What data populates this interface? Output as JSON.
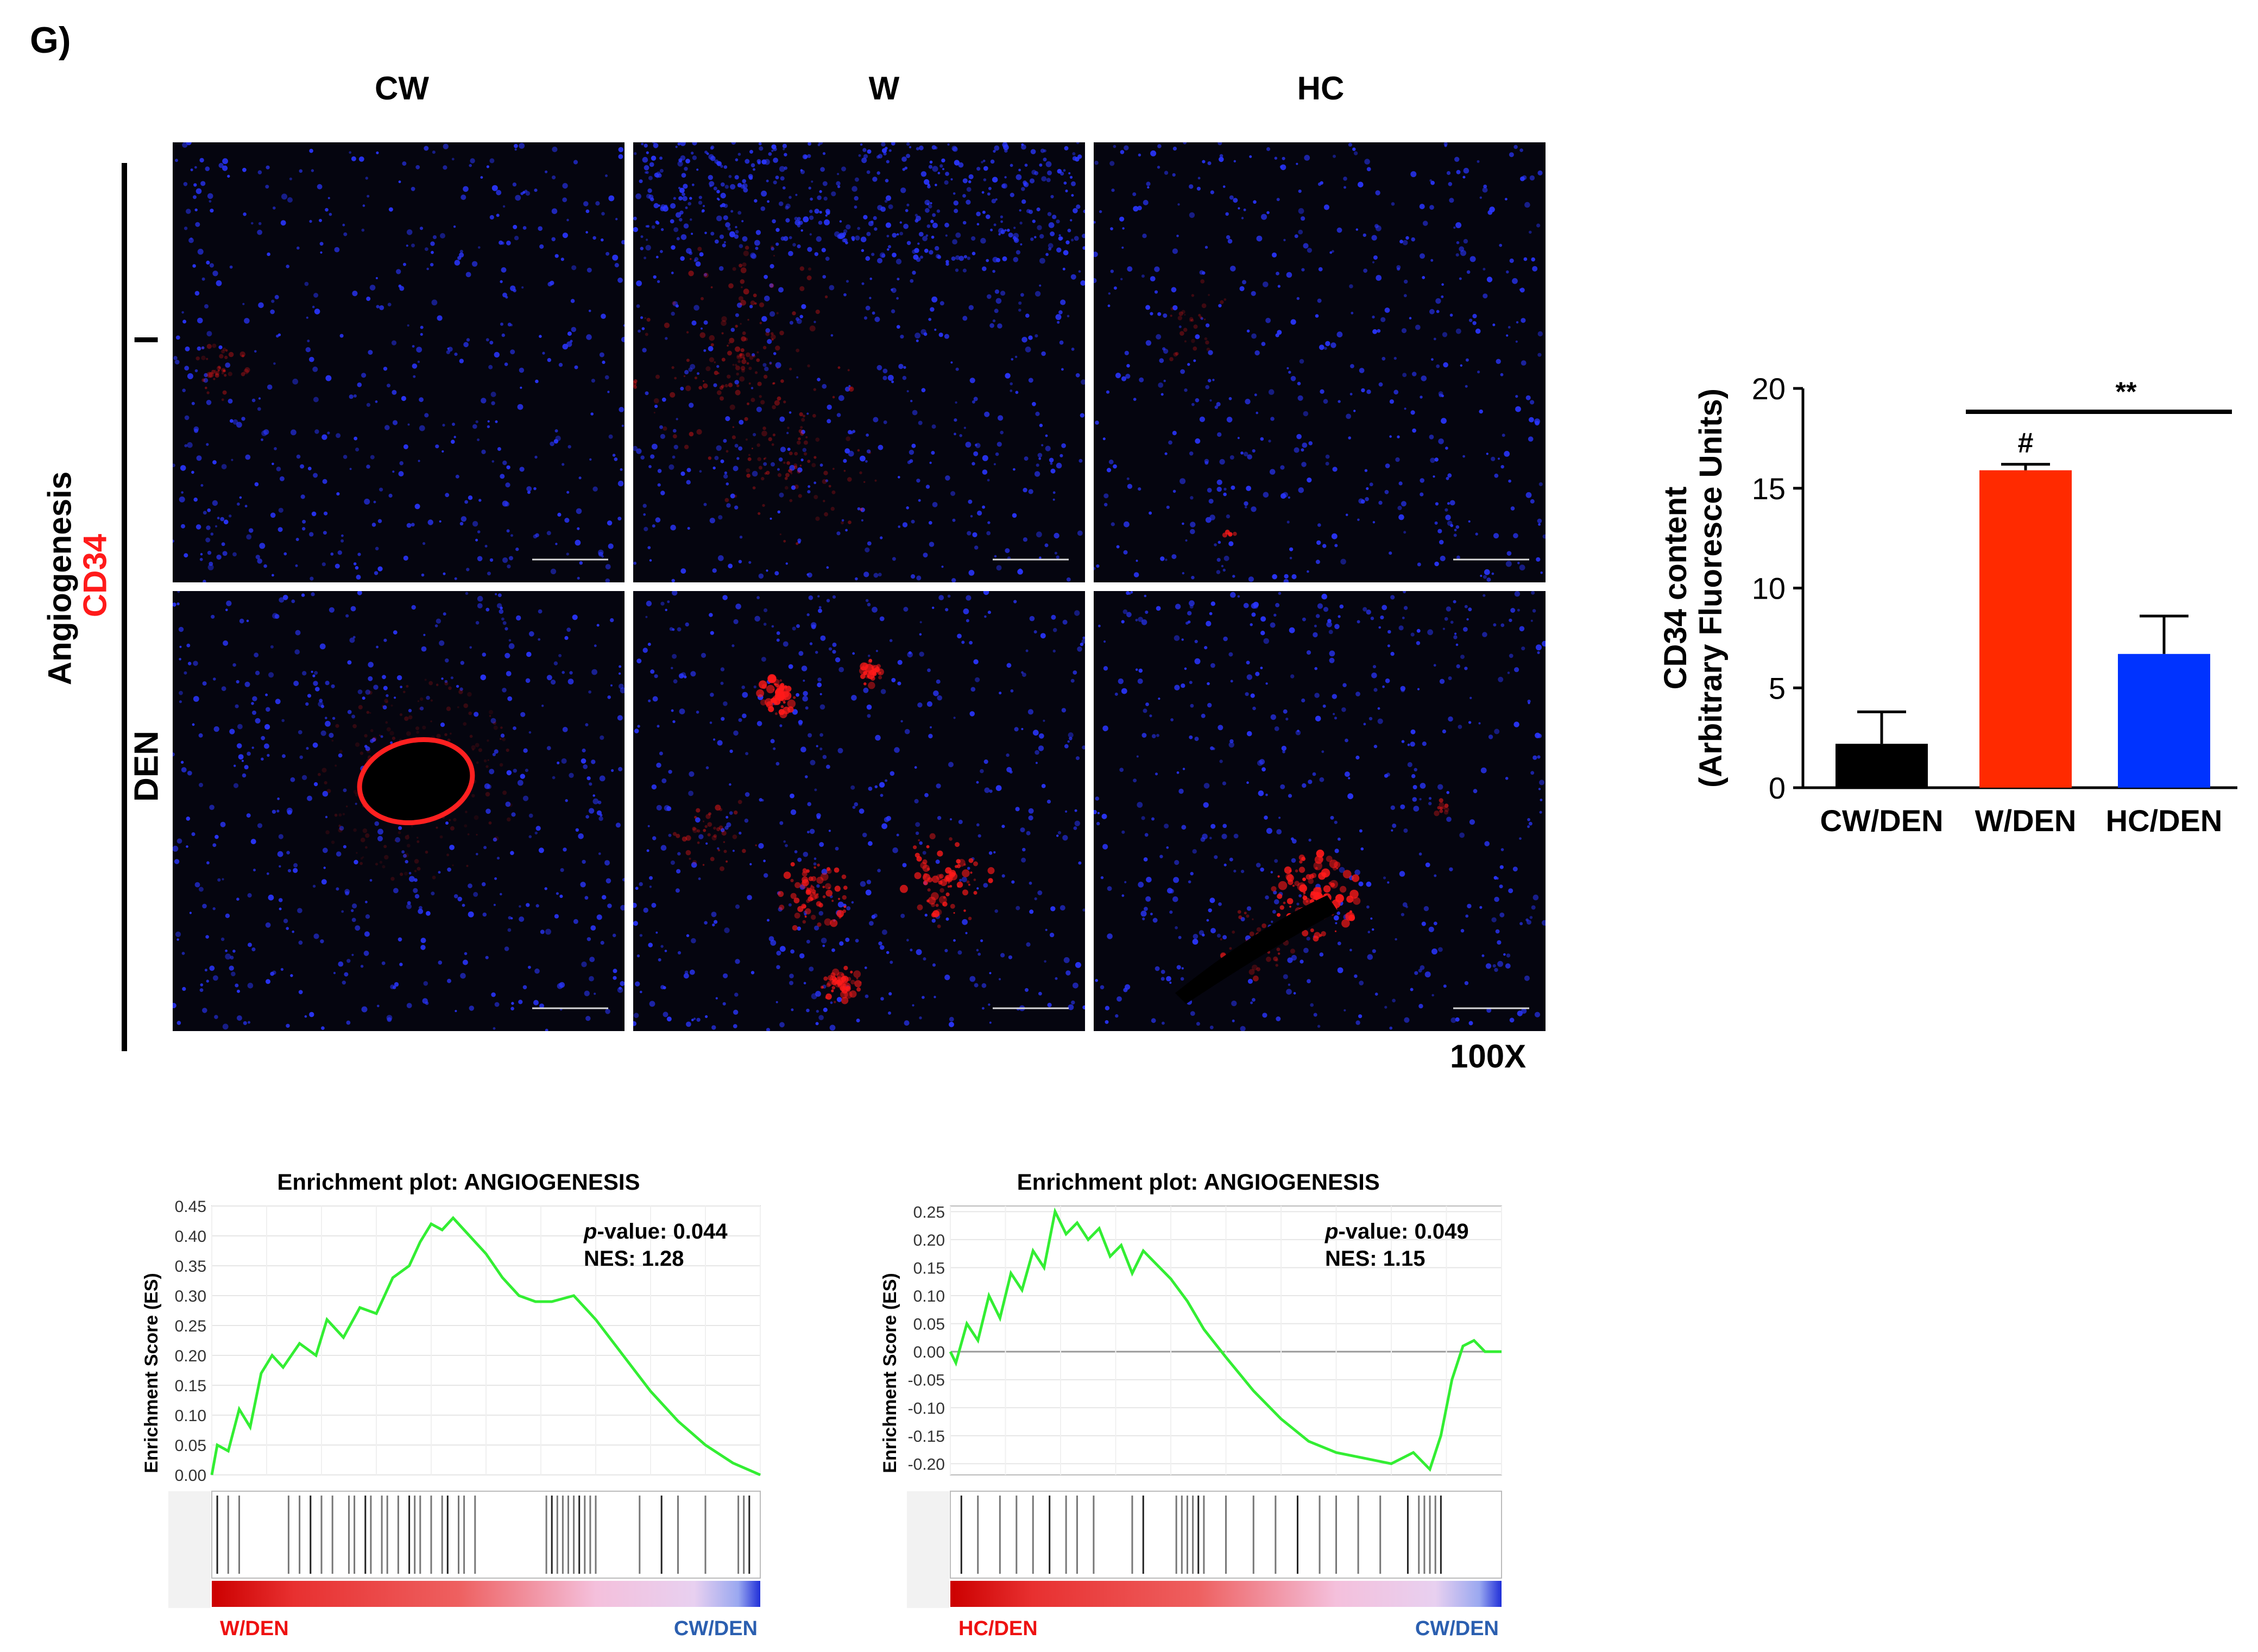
{
  "figure": {
    "panel_label": "G)",
    "column_headers": [
      "CW",
      "W",
      "HC"
    ],
    "row_labels": [
      "I",
      "DEN"
    ],
    "side_label_stain": "Angiogenesis",
    "side_label_marker": "CD34",
    "magnification": "100X",
    "colors": {
      "nuclei": "#2a36ff",
      "marker": "#ff1a1a",
      "background": "#05050f"
    }
  },
  "chart_data": [
    {
      "type": "bar",
      "categories": [
        "CW/DEN",
        "W/DEN",
        "HC/DEN"
      ],
      "values": [
        2.2,
        15.9,
        6.7
      ],
      "errors": [
        1.6,
        0.3,
        1.9
      ],
      "colors": [
        "#000000",
        "#ff2a00",
        "#0033ff"
      ],
      "ylabel_line1": "CD34 content",
      "ylabel_line2": "(Arbitrary Fluoresce Units)",
      "ylim": [
        0,
        20
      ],
      "yticks": [
        0,
        5,
        10,
        15,
        20
      ],
      "annotations": {
        "significance": "**",
        "hash": "#"
      }
    },
    {
      "type": "line",
      "title": "Enrichment plot: ANGIOGENESIS",
      "ylabel": "Enrichment Score (ES)",
      "ylim": [
        0,
        0.45
      ],
      "yticks": [
        "0.00",
        "0.05",
        "0.10",
        "0.15",
        "0.20",
        "0.25",
        "0.30",
        "0.35",
        "0.40",
        "0.45"
      ],
      "x": [
        0,
        0.01,
        0.03,
        0.05,
        0.07,
        0.09,
        0.11,
        0.13,
        0.16,
        0.19,
        0.21,
        0.24,
        0.27,
        0.3,
        0.33,
        0.36,
        0.38,
        0.4,
        0.42,
        0.44,
        0.47,
        0.5,
        0.53,
        0.56,
        0.59,
        0.62,
        0.66,
        0.7,
        0.75,
        0.8,
        0.85,
        0.9,
        0.95,
        1.0
      ],
      "y": [
        0.0,
        0.05,
        0.04,
        0.11,
        0.08,
        0.17,
        0.2,
        0.18,
        0.22,
        0.2,
        0.26,
        0.23,
        0.28,
        0.27,
        0.33,
        0.35,
        0.39,
        0.42,
        0.41,
        0.43,
        0.4,
        0.37,
        0.33,
        0.3,
        0.29,
        0.29,
        0.3,
        0.26,
        0.2,
        0.14,
        0.09,
        0.05,
        0.02,
        0.0
      ],
      "stats_label": "p",
      "stats_p": "-value: 0.044",
      "stats_nes": "NES: 1.28",
      "left_class": "W/DEN",
      "right_class": "CW/DEN",
      "hits": [
        0.01,
        0.03,
        0.05,
        0.14,
        0.16,
        0.18,
        0.2,
        0.22,
        0.25,
        0.26,
        0.28,
        0.29,
        0.31,
        0.32,
        0.34,
        0.36,
        0.37,
        0.38,
        0.4,
        0.42,
        0.43,
        0.45,
        0.46,
        0.48,
        0.61,
        0.62,
        0.63,
        0.64,
        0.65,
        0.66,
        0.67,
        0.68,
        0.69,
        0.7,
        0.78,
        0.82,
        0.85,
        0.9,
        0.96,
        0.97,
        0.98
      ],
      "line_color": "#33ee33"
    },
    {
      "type": "line",
      "title": "Enrichment plot: ANGIOGENESIS",
      "ylabel": "Enrichment Score (ES)",
      "ylim": [
        -0.22,
        0.26
      ],
      "yticks": [
        "0.25",
        "0.20",
        "0.15",
        "0.10",
        "0.05",
        "0.00",
        "-0.05",
        "-0.10",
        "-0.15",
        "-0.20"
      ],
      "x": [
        0,
        0.01,
        0.03,
        0.05,
        0.07,
        0.09,
        0.11,
        0.13,
        0.15,
        0.17,
        0.19,
        0.21,
        0.23,
        0.25,
        0.27,
        0.29,
        0.31,
        0.33,
        0.35,
        0.37,
        0.4,
        0.43,
        0.46,
        0.5,
        0.55,
        0.6,
        0.65,
        0.7,
        0.75,
        0.8,
        0.84,
        0.87,
        0.89,
        0.91,
        0.93,
        0.95,
        0.97,
        1.0
      ],
      "y": [
        0.0,
        -0.02,
        0.05,
        0.02,
        0.1,
        0.06,
        0.14,
        0.11,
        0.18,
        0.15,
        0.25,
        0.21,
        0.23,
        0.2,
        0.22,
        0.17,
        0.19,
        0.14,
        0.18,
        0.16,
        0.13,
        0.09,
        0.04,
        -0.01,
        -0.07,
        -0.12,
        -0.16,
        -0.18,
        -0.19,
        -0.2,
        -0.18,
        -0.21,
        -0.15,
        -0.05,
        0.01,
        0.02,
        0.0,
        0.0
      ],
      "stats_label": "p",
      "stats_p": "-value: 0.049",
      "stats_nes": "NES: 1.15",
      "left_class": "HC/DEN",
      "right_class": "CW/DEN",
      "hits": [
        0.02,
        0.05,
        0.09,
        0.12,
        0.15,
        0.18,
        0.21,
        0.23,
        0.26,
        0.33,
        0.35,
        0.41,
        0.42,
        0.43,
        0.44,
        0.45,
        0.46,
        0.5,
        0.55,
        0.59,
        0.63,
        0.67,
        0.7,
        0.74,
        0.78,
        0.83,
        0.85,
        0.86,
        0.87,
        0.88,
        0.89
      ],
      "line_color": "#33ee33"
    }
  ]
}
